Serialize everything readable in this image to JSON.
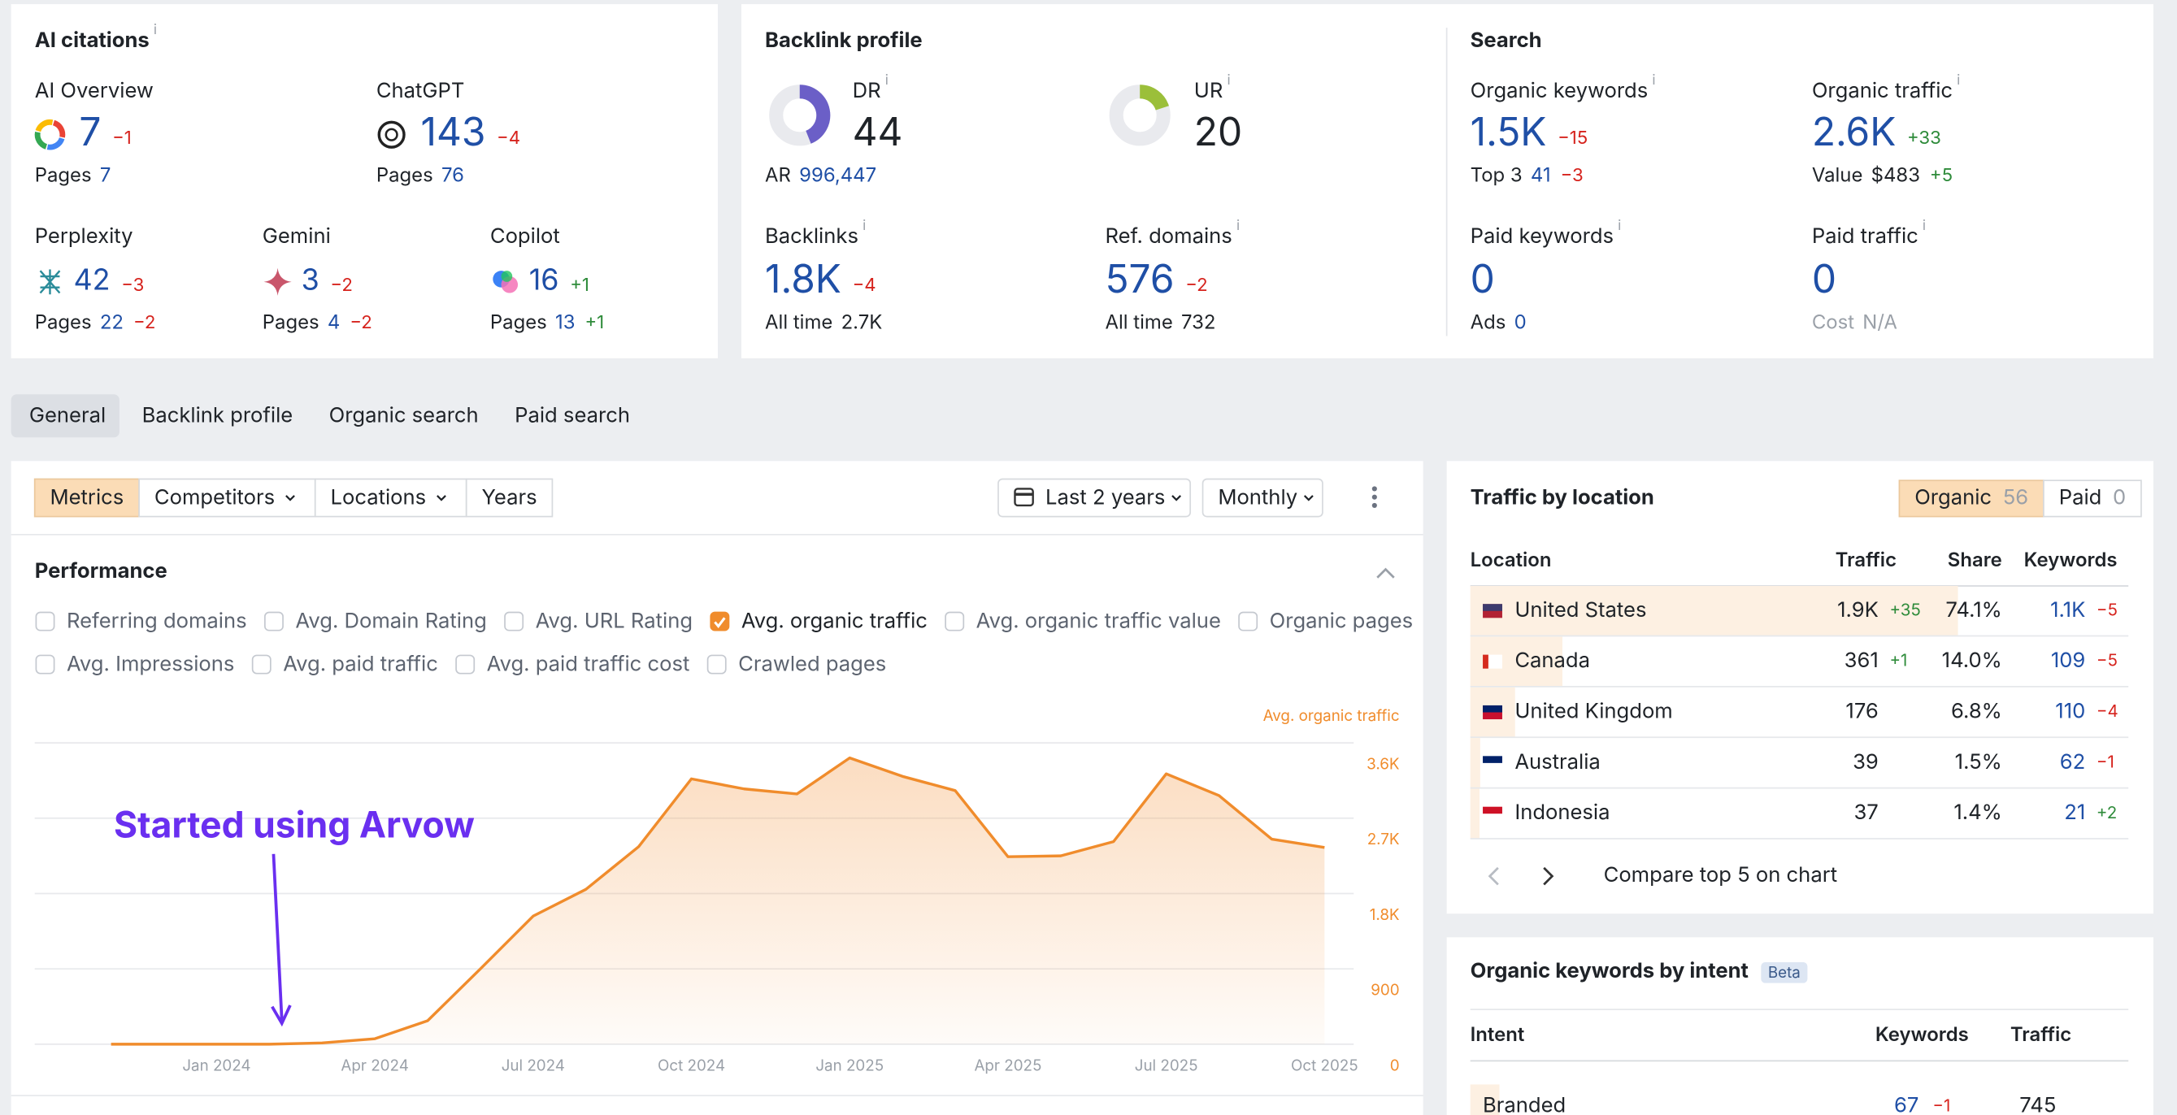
{
  "info": "i",
  "ai_citations": {
    "title": "AI citations",
    "items": [
      {
        "name": "AI Overview",
        "value": "7",
        "change": "−1",
        "pages_label": "Pages",
        "pages": "7"
      },
      {
        "name": "ChatGPT",
        "value": "143",
        "change": "−4",
        "pages_label": "Pages",
        "pages": "76"
      },
      {
        "name": "Perplexity",
        "value": "42",
        "change": "−3",
        "pages_label": "Pages",
        "pages": "22",
        "pages_change": "−2"
      },
      {
        "name": "Gemini",
        "value": "3",
        "change": "−2",
        "pages_label": "Pages",
        "pages": "4",
        "pages_change": "−2"
      },
      {
        "name": "Copilot",
        "value": "16",
        "change": "+1",
        "pages_label": "Pages",
        "pages": "13",
        "pages_change": "+1"
      }
    ]
  },
  "backlink_profile": {
    "title": "Backlink profile",
    "dr": {
      "label": "DR",
      "value": 44
    },
    "ar": {
      "label": "AR",
      "value": "996,447"
    },
    "ur": {
      "label": "UR",
      "value": 20
    },
    "backlinks": {
      "label": "Backlinks",
      "value": "1.8K",
      "change": "−4",
      "all_time_label": "All time",
      "all_time": "2.7K"
    },
    "ref_domains": {
      "label": "Ref. domains",
      "value": "576",
      "change": "−2",
      "all_time_label": "All time",
      "all_time": "732"
    }
  },
  "search": {
    "title": "Search",
    "items": [
      {
        "name": "Organic keywords",
        "value": "1.5K",
        "change": "−15",
        "sub_label": "Top 3",
        "sub_value": "41",
        "sub_change": "−3"
      },
      {
        "name": "Organic traffic",
        "value": "2.6K",
        "change": "+33",
        "sub_label": "Value",
        "sub_value": "$483",
        "sub_change": "+5"
      },
      {
        "name": "Paid keywords",
        "value": "0",
        "sub_label": "Ads",
        "sub_value": "0"
      },
      {
        "name": "Paid traffic",
        "value": "0",
        "sub_label": "Cost",
        "sub_value": "N/A"
      }
    ]
  },
  "tabs": [
    "General",
    "Backlink profile",
    "Organic search",
    "Paid search"
  ],
  "toolbar": {
    "left": [
      "Metrics",
      "Competitors",
      "Locations",
      "Years"
    ],
    "period": "Last 2 years",
    "interval": "Monthly"
  },
  "performance": {
    "title": "Performance",
    "metrics": [
      [
        {
          "label": "Referring domains",
          "checked": false
        },
        {
          "label": "Avg. Domain Rating",
          "checked": false
        },
        {
          "label": "Avg. URL Rating",
          "checked": false
        },
        {
          "label": "Avg. organic traffic",
          "checked": true
        },
        {
          "label": "Avg. organic traffic value",
          "checked": false
        },
        {
          "label": "Organic pages",
          "checked": false
        }
      ],
      [
        {
          "label": "Avg. Impressions",
          "checked": false
        },
        {
          "label": "Avg. paid traffic",
          "checked": false
        },
        {
          "label": "Avg. paid traffic cost",
          "checked": false
        },
        {
          "label": "Crawled pages",
          "checked": false
        }
      ]
    ]
  },
  "chart_data": {
    "type": "area",
    "y_label": "Avg. organic traffic",
    "annotation": "Started using Arvow",
    "categories": [
      null,
      null,
      "Jan 2024",
      null,
      null,
      "Apr 2024",
      null,
      null,
      "Jul 2024",
      null,
      null,
      "Oct 2024",
      null,
      null,
      "Jan 2025",
      null,
      null,
      "Apr 2025",
      null,
      null,
      "Jul 2025",
      null,
      null,
      "Oct 2025"
    ],
    "values": [
      0,
      0,
      0,
      0,
      15,
      65,
      280,
      900,
      1530,
      1850,
      2360,
      3170,
      3050,
      2990,
      3420,
      3200,
      3030,
      2240,
      2250,
      2420,
      3230,
      2970,
      2450,
      2350
    ],
    "color": "#f08c2c",
    "ylim": [
      0,
      3600
    ],
    "yticks": [
      0,
      900,
      {
        "value": 1800,
        "label": "1.8K"
      },
      {
        "value": 2700,
        "label": "2.7K"
      },
      {
        "value": 3600,
        "label": "3.6K"
      }
    ],
    "grid": true
  },
  "traffic_by_location": {
    "title": "Traffic by location",
    "toggle": [
      {
        "label": "Organic",
        "count": "56"
      },
      {
        "label": "Paid",
        "count": "0"
      }
    ],
    "columns": [
      "Location",
      "Traffic",
      "Share",
      "Keywords"
    ],
    "rows": [
      {
        "location": "United States",
        "traffic": "1.9K",
        "traffic_change": "+35",
        "share": 74.1,
        "share_label": "74.1%",
        "keywords": "1.1K",
        "keywords_change": "−5"
      },
      {
        "location": "Canada",
        "traffic": "361",
        "traffic_change": "+1",
        "share": 14.0,
        "share_label": "14.0%",
        "keywords": "109",
        "keywords_change": "−5"
      },
      {
        "location": "United Kingdom",
        "traffic": "176",
        "share": 6.8,
        "share_label": "6.8%",
        "keywords": "110",
        "keywords_change": "−4"
      },
      {
        "location": "Australia",
        "traffic": "39",
        "share": 1.5,
        "share_label": "1.5%",
        "keywords": "62",
        "keywords_change": "−1"
      },
      {
        "location": "Indonesia",
        "traffic": "37",
        "share": 1.4,
        "share_label": "1.4%",
        "keywords": "21",
        "keywords_change": "+2"
      }
    ],
    "footer": "Compare top 5 on chart"
  },
  "keywords_by_intent": {
    "title": "Organic keywords by intent",
    "badge": "Beta",
    "columns": [
      "Intent",
      "Keywords",
      "Traffic"
    ],
    "rows": [
      {
        "intent": "Branded",
        "keywords": "67",
        "keywords_change": "−1",
        "traffic": "745"
      }
    ]
  }
}
